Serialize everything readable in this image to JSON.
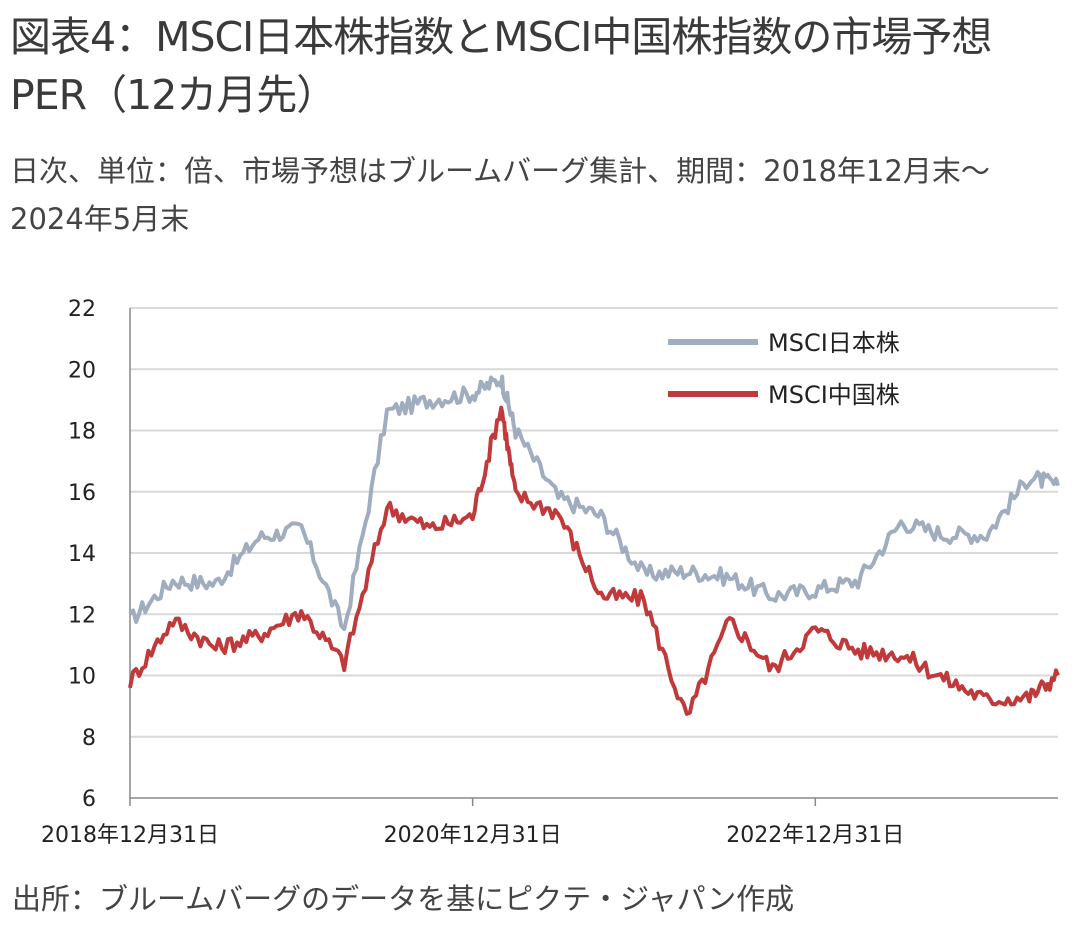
{
  "title": "図表4：MSCI日本株指数とMSCI中国株指数の市場予想PER（12カ月先）",
  "subtitle": "日次、単位：倍、市場予想はブルームバーグ集計、期間：2018年12月末～2024年5月末",
  "source": "出所：ブルームバーグのデータを基にピクテ・ジャパン作成",
  "chart_data": {
    "type": "line",
    "title": "",
    "xlabel": "",
    "ylabel": "",
    "ylim": [
      6,
      22
    ],
    "y_ticks": [
      "6",
      "8",
      "10",
      "12",
      "14",
      "16",
      "18",
      "20",
      "22"
    ],
    "x_ticks": [
      "2018年12月31日",
      "2020年12月31日",
      "2022年12月31日"
    ],
    "grid": true,
    "legend_position": "top-right",
    "x": [
      "2018-12",
      "2019-03",
      "2019-06",
      "2019-09",
      "2019-12",
      "2020-03",
      "2020-06",
      "2020-09",
      "2020-12",
      "2021-02",
      "2021-03",
      "2021-06",
      "2021-09",
      "2021-12",
      "2022-03",
      "2022-06",
      "2022-09",
      "2022-12",
      "2023-03",
      "2023-06",
      "2023-09",
      "2023-12",
      "2024-03",
      "2024-05"
    ],
    "series": [
      {
        "name": "MSCI日本株",
        "color": "#9fadbf",
        "values": [
          11.8,
          13.1,
          13.0,
          14.5,
          14.8,
          11.5,
          18.6,
          19.0,
          19.2,
          19.7,
          18.0,
          15.8,
          15.2,
          13.3,
          13.4,
          13.2,
          12.6,
          12.8,
          13.1,
          15.0,
          14.6,
          14.6,
          16.5,
          16.2
        ]
      },
      {
        "name": "MSCI中国株",
        "color": "#c0393b",
        "values": [
          9.8,
          11.8,
          10.9,
          11.3,
          12.1,
          10.4,
          15.5,
          14.8,
          15.2,
          18.8,
          15.9,
          15.3,
          12.6,
          12.5,
          8.6,
          11.8,
          10.2,
          11.5,
          10.8,
          10.7,
          9.9,
          9.2,
          9.3,
          10.0
        ]
      }
    ]
  }
}
